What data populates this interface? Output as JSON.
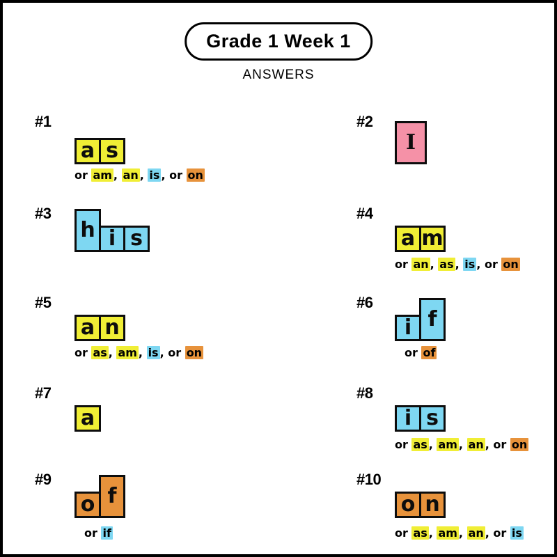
{
  "header": {
    "title": "Grade 1 Week 1",
    "subtitle": "ANSWERS"
  },
  "colors": {
    "yellow": "#F0EE35",
    "blue": "#7ED7F2",
    "orange": "#E7923B",
    "pink": "#F591A7",
    "tile_border": "#0d0d0d"
  },
  "items": [
    {
      "number": "#1",
      "word": "as",
      "tiles": [
        {
          "ch": "a",
          "color": "yellow",
          "tall": false
        },
        {
          "ch": "s",
          "color": "yellow",
          "tall": false
        }
      ],
      "alt": [
        {
          "t": "or "
        },
        {
          "t": "am",
          "hl": "yellow"
        },
        {
          "t": ", "
        },
        {
          "t": "an",
          "hl": "yellow"
        },
        {
          "t": ", "
        },
        {
          "t": "is",
          "hl": "blue"
        },
        {
          "t": ", or "
        },
        {
          "t": "on",
          "hl": "orange"
        }
      ]
    },
    {
      "number": "#2",
      "word": "I",
      "tiles": [
        {
          "ch": "I",
          "color": "pink",
          "tall": true,
          "wide": true
        }
      ],
      "alt": []
    },
    {
      "number": "#3",
      "word": "his",
      "tiles": [
        {
          "ch": "h",
          "color": "blue",
          "tall": true
        },
        {
          "ch": "i",
          "color": "blue",
          "tall": false
        },
        {
          "ch": "s",
          "color": "blue",
          "tall": false
        }
      ],
      "alt": []
    },
    {
      "number": "#4",
      "word": "am",
      "tiles": [
        {
          "ch": "a",
          "color": "yellow",
          "tall": false
        },
        {
          "ch": "m",
          "color": "yellow",
          "tall": false
        }
      ],
      "alt": [
        {
          "t": "or "
        },
        {
          "t": "an",
          "hl": "yellow"
        },
        {
          "t": ", "
        },
        {
          "t": "as",
          "hl": "yellow"
        },
        {
          "t": ", "
        },
        {
          "t": "is",
          "hl": "blue"
        },
        {
          "t": ", or "
        },
        {
          "t": "on",
          "hl": "orange"
        }
      ]
    },
    {
      "number": "#5",
      "word": "an",
      "tiles": [
        {
          "ch": "a",
          "color": "yellow",
          "tall": false
        },
        {
          "ch": "n",
          "color": "yellow",
          "tall": false
        }
      ],
      "alt": [
        {
          "t": "or "
        },
        {
          "t": "as",
          "hl": "yellow"
        },
        {
          "t": ", "
        },
        {
          "t": "am",
          "hl": "yellow"
        },
        {
          "t": ", "
        },
        {
          "t": "is",
          "hl": "blue"
        },
        {
          "t": ", or "
        },
        {
          "t": "on",
          "hl": "orange"
        }
      ]
    },
    {
      "number": "#6",
      "word": "if",
      "tiles": [
        {
          "ch": "i",
          "color": "blue",
          "tall": false
        },
        {
          "ch": "f",
          "color": "blue",
          "tall": true
        }
      ],
      "alt": [
        {
          "t": "or "
        },
        {
          "t": "of",
          "hl": "orange"
        }
      ]
    },
    {
      "number": "#7",
      "word": "a",
      "tiles": [
        {
          "ch": "a",
          "color": "yellow",
          "tall": false
        }
      ],
      "alt": []
    },
    {
      "number": "#8",
      "word": "is",
      "tiles": [
        {
          "ch": "i",
          "color": "blue",
          "tall": false
        },
        {
          "ch": "s",
          "color": "blue",
          "tall": false
        }
      ],
      "alt": [
        {
          "t": "or "
        },
        {
          "t": "as",
          "hl": "yellow"
        },
        {
          "t": ", "
        },
        {
          "t": "am",
          "hl": "yellow"
        },
        {
          "t": ", "
        },
        {
          "t": "an",
          "hl": "yellow"
        },
        {
          "t": ", or "
        },
        {
          "t": "on",
          "hl": "orange"
        }
      ]
    },
    {
      "number": "#9",
      "word": "of",
      "tiles": [
        {
          "ch": "o",
          "color": "orange",
          "tall": false
        },
        {
          "ch": "f",
          "color": "orange",
          "tall": true
        }
      ],
      "alt": [
        {
          "t": "or "
        },
        {
          "t": "if",
          "hl": "blue"
        }
      ]
    },
    {
      "number": "#10",
      "word": "on",
      "tiles": [
        {
          "ch": "o",
          "color": "orange",
          "tall": false
        },
        {
          "ch": "n",
          "color": "orange",
          "tall": false
        }
      ],
      "alt": [
        {
          "t": "or "
        },
        {
          "t": "as",
          "hl": "yellow"
        },
        {
          "t": ", "
        },
        {
          "t": "am",
          "hl": "yellow"
        },
        {
          "t": ", "
        },
        {
          "t": "an",
          "hl": "yellow"
        },
        {
          "t": ", or "
        },
        {
          "t": "is",
          "hl": "blue"
        }
      ]
    }
  ]
}
